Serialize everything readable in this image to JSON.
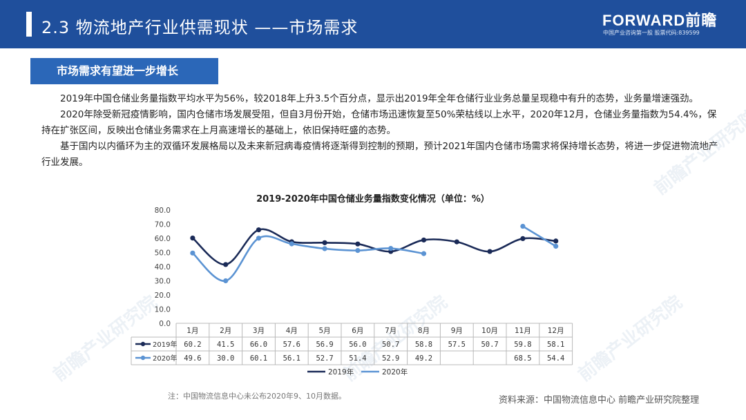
{
  "header": {
    "title": "2.3 物流地产行业供需现状 ——市场需求",
    "logo": "FORWARD前瞻",
    "logo_sub": "中国产业咨询第一股 股票代码:839599"
  },
  "section_tag": "市场需求有望进一步增长",
  "paragraphs": [
    "2019年中国仓储业务量指数平均水平为56%，较2018年上升3.5个百分点，显示出2019年全年仓储行业业务总量呈现稳中有升的态势，业务量增速强劲。",
    "2020年除受新冠疫情影响，国内仓储市场发展受阻，但自3月份开始，仓储市场迅速恢复至50%荣枯线以上水平，2020年12月，仓储业务量指数为54.4%，保持在扩张区间，反映出仓储业务需求在上月高速增长的基础上，依旧保持旺盛的态势。",
    "基于国内以内循环为主的双循环发展格局以及未来新冠病毒疫情将逐渐得到控制的预期，预计2021年国内仓储市场需求将保持增长态势，将进一步促进物流地产行业发展。"
  ],
  "chart_data": {
    "type": "line",
    "title": "2019-2020年中国仓储业务量指数变化情况（单位：%）",
    "categories": [
      "1月",
      "2月",
      "3月",
      "4月",
      "5月",
      "6月",
      "7月",
      "8月",
      "9月",
      "10月",
      "11月",
      "12月"
    ],
    "ylim": [
      0,
      80
    ],
    "yticks": [
      "0.0",
      "10.0",
      "20.0",
      "30.0",
      "40.0",
      "50.0",
      "60.0",
      "70.0",
      "80.0"
    ],
    "series": [
      {
        "name": "2019年",
        "color": "#1a2a57",
        "values": [
          60.2,
          41.5,
          66.0,
          57.6,
          56.9,
          56.0,
          50.7,
          58.8,
          57.5,
          50.7,
          59.8,
          58.1
        ],
        "labels": [
          "60.2",
          "41.5",
          "66.0",
          "57.6",
          "56.9",
          "56.0",
          "50.7",
          "58.8",
          "57.5",
          "50.7",
          "59.8",
          "58.1"
        ]
      },
      {
        "name": "2020年",
        "color": "#5b93d3",
        "values": [
          49.6,
          30.0,
          60.1,
          56.1,
          52.7,
          51.4,
          52.9,
          49.2,
          null,
          null,
          68.5,
          54.4
        ],
        "labels": [
          "49.6",
          "30.0",
          "60.1",
          "56.1",
          "52.7",
          "51.4",
          "52.9",
          "49.2",
          "",
          "",
          "68.5",
          "54.4"
        ]
      }
    ]
  },
  "footnote": "注：中国物流信息中心未公布2020年9、10月数据。",
  "source": "资料来源：中国物流信息中心 前瞻产业研究院整理",
  "watermark": "前瞻产业研究院"
}
